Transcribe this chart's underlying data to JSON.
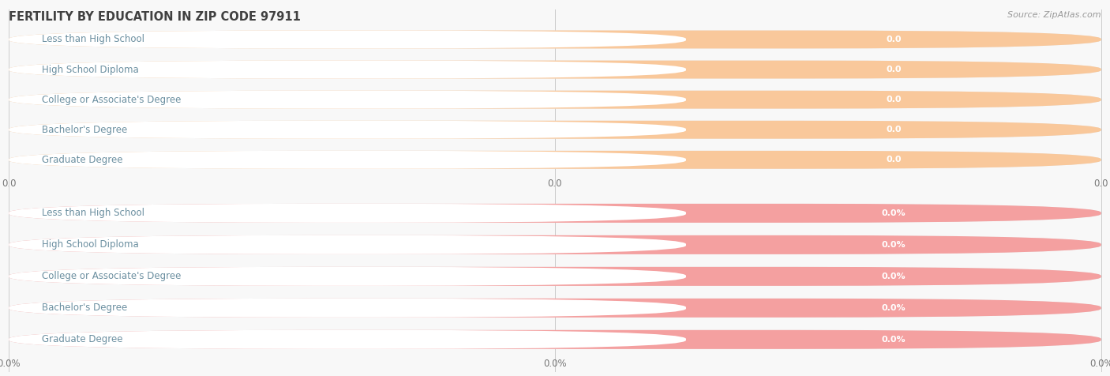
{
  "title": "FERTILITY BY EDUCATION IN ZIP CODE 97911",
  "source": "Source: ZipAtlas.com",
  "categories": [
    "Less than High School",
    "High School Diploma",
    "College or Associate's Degree",
    "Bachelor's Degree",
    "Graduate Degree"
  ],
  "values_top": [
    0.0,
    0.0,
    0.0,
    0.0,
    0.0
  ],
  "values_bottom": [
    0.0,
    0.0,
    0.0,
    0.0,
    0.0
  ],
  "labels_top": [
    "0.0",
    "0.0",
    "0.0",
    "0.0",
    "0.0"
  ],
  "labels_bottom": [
    "0.0%",
    "0.0%",
    "0.0%",
    "0.0%",
    "0.0%"
  ],
  "bar_color_top": "#f9c89b",
  "bar_color_bottom": "#f4a0a0",
  "row_bg_color": "#e8e8e8",
  "white_pill_color": "#ffffff",
  "text_color": "#6b8fa0",
  "value_text_color": "#ffffff",
  "title_color": "#404040",
  "source_color": "#999999",
  "axis_tick_color": "#777777",
  "background_color": "#f8f8f8",
  "axis_ticks_top": [
    "0.0",
    "0.0",
    "0.0"
  ],
  "axis_ticks_bottom": [
    "0.0%",
    "0.0%",
    "0.0%"
  ],
  "bar_height": 0.6,
  "xlim_max": 1.0
}
